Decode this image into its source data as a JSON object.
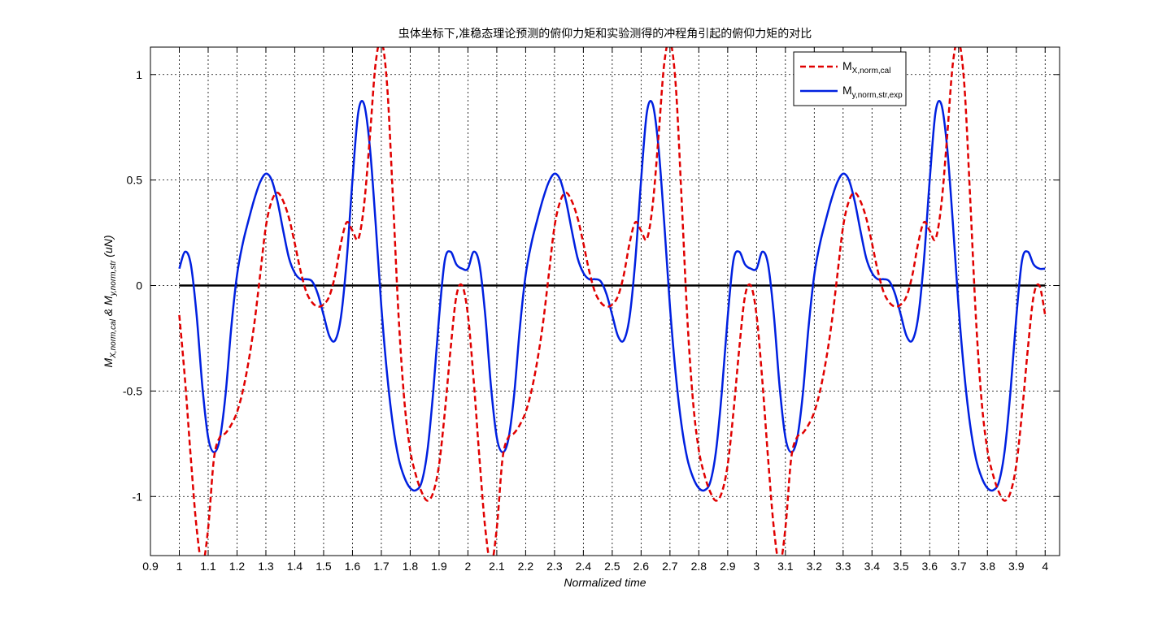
{
  "chart_data": {
    "type": "line",
    "title": "虫体坐标下,准稳态理论预测的俯仰力矩和实验测得的冲程角引起的俯仰力矩的对比",
    "xlabel": "Normalized time",
    "ylabel": "M_X,norm,cal & M_y,norm,str (uN)",
    "xlim": [
      0.9,
      4.05
    ],
    "ylim": [
      -1.28,
      1.13
    ],
    "x_ticks": [
      "0.9",
      "1",
      "1.1",
      "1.2",
      "1.3",
      "1.4",
      "1.5",
      "1.6",
      "1.7",
      "1.8",
      "1.9",
      "2",
      "2.1",
      "2.2",
      "2.3",
      "2.4",
      "2.5",
      "2.6",
      "2.7",
      "2.8",
      "2.9",
      "3",
      "3.1",
      "3.2",
      "3.3",
      "3.4",
      "3.5",
      "3.6",
      "3.7",
      "3.8",
      "3.9",
      "4"
    ],
    "y_ticks": [
      "-1",
      "-0.5",
      "0",
      "0.5",
      "1"
    ],
    "grid": true,
    "grid_style": "dotted",
    "zero_line": 0,
    "legend_position": "top-right",
    "period": 1,
    "series": [
      {
        "name": "M_X,norm,cal",
        "legend_main": "M",
        "legend_sub": "X,norm,cal",
        "color": "#e00000",
        "style": "dashed",
        "x": [
          1.0,
          1.02,
          1.04,
          1.06,
          1.08,
          1.1,
          1.12,
          1.14,
          1.16,
          1.18,
          1.2,
          1.22,
          1.24,
          1.26,
          1.28,
          1.3,
          1.32,
          1.34,
          1.36,
          1.38,
          1.4,
          1.42,
          1.44,
          1.46,
          1.48,
          1.5,
          1.52,
          1.54,
          1.56,
          1.58,
          1.6,
          1.62,
          1.64,
          1.66,
          1.68,
          1.7,
          1.72,
          1.74,
          1.76,
          1.78,
          1.8,
          1.82,
          1.84,
          1.86,
          1.88,
          1.9,
          1.92,
          1.94,
          1.96,
          1.98,
          2.0
        ],
        "y": [
          -0.14,
          -0.45,
          -0.82,
          -1.15,
          -1.32,
          -1.15,
          -0.82,
          -0.72,
          -0.7,
          -0.66,
          -0.6,
          -0.5,
          -0.36,
          -0.18,
          0.05,
          0.28,
          0.4,
          0.44,
          0.4,
          0.32,
          0.2,
          0.07,
          -0.03,
          -0.08,
          -0.1,
          -0.09,
          -0.05,
          0.05,
          0.2,
          0.3,
          0.26,
          0.22,
          0.38,
          0.7,
          1.05,
          1.16,
          0.95,
          0.42,
          -0.15,
          -0.55,
          -0.78,
          -0.9,
          -0.98,
          -1.02,
          -0.98,
          -0.85,
          -0.6,
          -0.3,
          -0.05,
          0.0,
          -0.14
        ]
      },
      {
        "name": "M_y,norm,str,exp",
        "legend_main": "M",
        "legend_sub": "y,norm,str,exp",
        "color": "#0020e0",
        "style": "solid",
        "x": [
          1.0,
          1.02,
          1.04,
          1.06,
          1.08,
          1.1,
          1.12,
          1.14,
          1.16,
          1.18,
          1.2,
          1.22,
          1.24,
          1.26,
          1.28,
          1.3,
          1.32,
          1.34,
          1.36,
          1.38,
          1.4,
          1.42,
          1.44,
          1.46,
          1.48,
          1.5,
          1.52,
          1.54,
          1.56,
          1.58,
          1.6,
          1.62,
          1.64,
          1.66,
          1.68,
          1.7,
          1.72,
          1.74,
          1.76,
          1.78,
          1.8,
          1.82,
          1.84,
          1.86,
          1.88,
          1.9,
          1.92,
          1.94,
          1.96,
          1.98,
          2.0
        ],
        "y": [
          0.08,
          0.16,
          0.1,
          -0.14,
          -0.48,
          -0.72,
          -0.79,
          -0.73,
          -0.52,
          -0.2,
          0.05,
          0.2,
          0.31,
          0.41,
          0.49,
          0.53,
          0.5,
          0.4,
          0.26,
          0.13,
          0.06,
          0.03,
          0.03,
          0.02,
          -0.04,
          -0.14,
          -0.24,
          -0.26,
          -0.15,
          0.12,
          0.5,
          0.82,
          0.86,
          0.66,
          0.3,
          -0.1,
          -0.42,
          -0.66,
          -0.82,
          -0.91,
          -0.96,
          -0.97,
          -0.93,
          -0.78,
          -0.5,
          -0.15,
          0.12,
          0.16,
          0.1,
          0.08,
          0.08
        ]
      }
    ]
  }
}
